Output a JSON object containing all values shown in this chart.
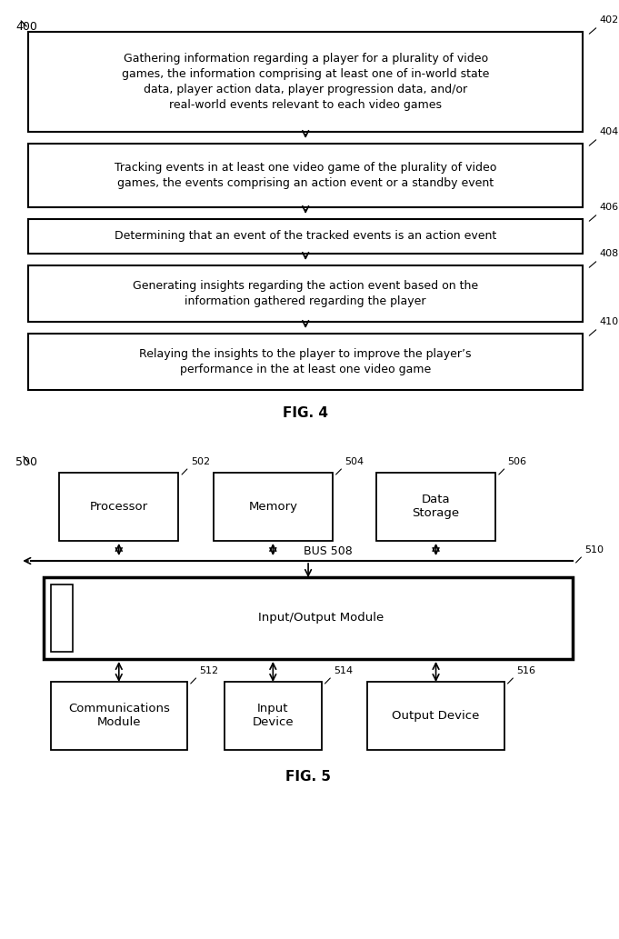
{
  "fig4": {
    "title": "FIG. 4",
    "label_400": "400",
    "boxes": [
      {
        "id": "402",
        "label": "Gathering information regarding a player for a plurality of video\ngames, the information comprising at least one of in-world state\ndata, player action data, player progression data, and/or\nreal-world events relevant to each video games",
        "ref": "402"
      },
      {
        "id": "404",
        "label": "Tracking events in at least one video game of the plurality of video\ngames, the events comprising an action event or a standby event",
        "ref": "404"
      },
      {
        "id": "406",
        "label": "Determining that an event of the tracked events is an action event",
        "ref": "406"
      },
      {
        "id": "408",
        "label": "Generating insights regarding the action event based on the\ninformation gathered regarding the player",
        "ref": "408"
      },
      {
        "id": "410",
        "label": "Relaying the insights to the player to improve the player’s\nperformance in the at least one video game",
        "ref": "410"
      }
    ]
  },
  "fig5": {
    "title": "FIG. 5",
    "label_500": "500",
    "top_boxes": [
      {
        "id": "502",
        "label": "Processor"
      },
      {
        "id": "504",
        "label": "Memory"
      },
      {
        "id": "506",
        "label": "Data\nStorage"
      }
    ],
    "bus_label": "BUS 508",
    "bus_ref": "508",
    "io_box": {
      "id": "510",
      "label": "Input/Output Module"
    },
    "bottom_boxes": [
      {
        "id": "512",
        "label": "Communications\nModule"
      },
      {
        "id": "514",
        "label": "Input\nDevice"
      },
      {
        "id": "516",
        "label": "Output Device"
      }
    ]
  },
  "bg_color": "#ffffff",
  "box_color": "#ffffff",
  "line_color": "#000000",
  "text_color": "#000000",
  "font_size": 9,
  "font_size_small": 8,
  "font_size_ref": 8
}
